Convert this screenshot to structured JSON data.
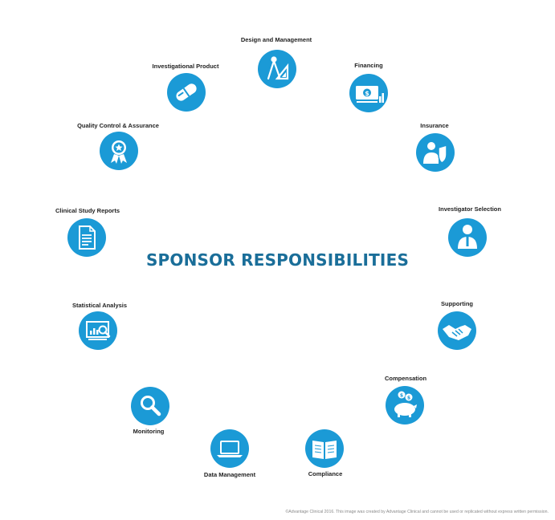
{
  "title": "SPONSOR RESPONSIBILITIES",
  "copyright": "©Advantage Clinical 2016. This image was created by Advantage Clinical and cannot be used or replicated without express written permission.",
  "colors": {
    "accent": "#1b9ad6",
    "title": "#1a6e99",
    "label": "#222222"
  },
  "items": [
    {
      "label": "Design and Management",
      "icon": "compass-ruler-icon"
    },
    {
      "label": "Financing",
      "icon": "money-icon"
    },
    {
      "label": "Insurance",
      "icon": "person-shield-icon"
    },
    {
      "label": "Investigator Selection",
      "icon": "person-icon"
    },
    {
      "label": "Supporting",
      "icon": "handshake-icon"
    },
    {
      "label": "Compensation",
      "icon": "piggy-bank-icon"
    },
    {
      "label": "Compliance",
      "icon": "open-book-icon"
    },
    {
      "label": "Data Management",
      "icon": "laptop-icon"
    },
    {
      "label": "Monitoring",
      "icon": "magnifier-icon"
    },
    {
      "label": "Statistical Analysis",
      "icon": "analytics-screen-icon"
    },
    {
      "label": "Clinical Study Reports",
      "icon": "document-icon"
    },
    {
      "label": "Quality Control & Assurance",
      "icon": "award-badge-icon"
    },
    {
      "label": "Investigational Product",
      "icon": "capsule-icon"
    }
  ]
}
